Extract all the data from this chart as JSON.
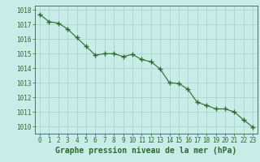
{
  "x": [
    0,
    1,
    2,
    3,
    4,
    5,
    6,
    7,
    8,
    9,
    10,
    11,
    12,
    13,
    14,
    15,
    16,
    17,
    18,
    19,
    20,
    21,
    22,
    23
  ],
  "y": [
    1017.7,
    1017.2,
    1017.1,
    1016.7,
    1016.1,
    1015.5,
    1014.9,
    1015.0,
    1015.0,
    1014.8,
    1014.95,
    1014.6,
    1014.45,
    1013.95,
    1013.0,
    1012.95,
    1012.55,
    1011.65,
    1011.45,
    1011.2,
    1011.2,
    1011.0,
    1010.45,
    1009.95
  ],
  "line_color": "#2d6a2d",
  "marker": "+",
  "marker_size": 4,
  "marker_linewidth": 1.0,
  "linewidth": 0.8,
  "background_color": "#c8ece8",
  "grid_color": "#a8cec8",
  "xlabel": "Graphe pression niveau de la mer (hPa)",
  "xlabel_color": "#2d6a2d",
  "xlabel_fontsize": 7,
  "tick_color": "#2d6a2d",
  "tick_fontsize": 5.5,
  "ylim": [
    1009.5,
    1018.3
  ],
  "xlim": [
    -0.5,
    23.5
  ],
  "yticks": [
    1010,
    1011,
    1012,
    1013,
    1014,
    1015,
    1016,
    1017,
    1018
  ],
  "xticks": [
    0,
    1,
    2,
    3,
    4,
    5,
    6,
    7,
    8,
    9,
    10,
    11,
    12,
    13,
    14,
    15,
    16,
    17,
    18,
    19,
    20,
    21,
    22,
    23
  ]
}
